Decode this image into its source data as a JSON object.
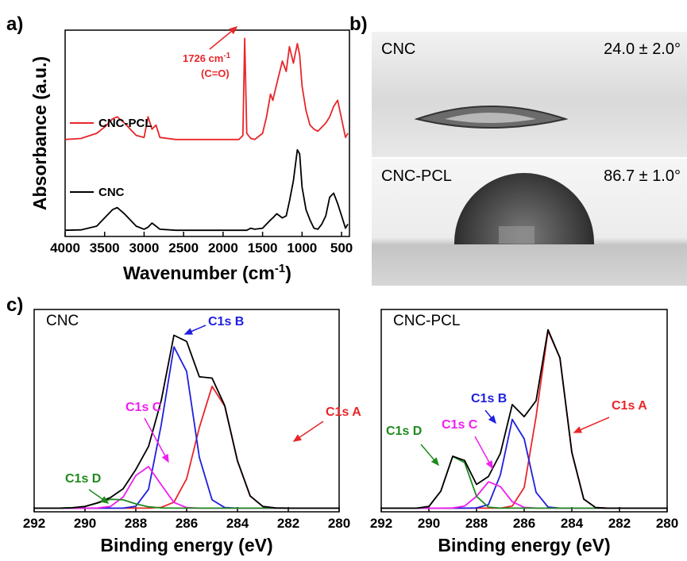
{
  "panels": [
    "a)",
    "b)",
    "c)"
  ],
  "images": [
    {
      "label": "CNC",
      "angle": "24.0 ± 2.0°"
    },
    {
      "label": "CNC-PCL",
      "angle": "86.7 ± 1.0°"
    }
  ],
  "chart_data": [
    {
      "type": "line",
      "xlabel": {
        "text": "Wavenumber (cm",
        "sup": "-1",
        "end": ")"
      },
      "ylabel": "Absorbance (a.u.)",
      "annotation": {
        "text": "1726 cm",
        "sup": "-1",
        "note": "(C=O)"
      },
      "xlim": [
        4000,
        400
      ],
      "xticks": [
        4000,
        3500,
        3000,
        2500,
        2000,
        1500,
        1000,
        500
      ],
      "ylim": [
        0,
        100
      ],
      "x": [
        4000,
        3800,
        3600,
        3500,
        3400,
        3340,
        3250,
        3100,
        3000,
        2950,
        2900,
        2850,
        2800,
        2600,
        2400,
        2200,
        2000,
        1800,
        1750,
        1726,
        1700,
        1650,
        1600,
        1500,
        1450,
        1400,
        1370,
        1320,
        1250,
        1200,
        1160,
        1110,
        1060,
        1030,
        1000,
        950,
        900,
        850,
        800,
        750,
        700,
        650,
        600,
        550,
        500,
        450,
        420
      ],
      "series": [
        {
          "name": "CNC-PCL",
          "color": "#e8262a",
          "values": [
            47,
            47.5,
            50,
            53,
            57,
            58,
            55,
            49,
            48,
            58,
            52,
            54,
            48,
            47,
            47,
            47,
            47,
            47,
            49,
            96,
            50,
            47.5,
            47,
            50,
            58,
            69,
            66,
            74,
            85,
            80,
            92,
            84,
            93.5,
            88,
            73,
            61,
            54,
            52,
            51,
            53,
            55,
            58,
            63,
            66,
            57,
            48,
            50
          ]
        },
        {
          "name": "CNC",
          "color": "#000000",
          "values": [
            3,
            3.2,
            5,
            9,
            13,
            14,
            11,
            5,
            3.5,
            4.5,
            6.5,
            5,
            3.5,
            3,
            3,
            3,
            3,
            3,
            3,
            3,
            3,
            4,
            3.5,
            4,
            6,
            8,
            9,
            11,
            9,
            10,
            17,
            27,
            42,
            40,
            24,
            13,
            8,
            4,
            3.5,
            6,
            10,
            19,
            21,
            16,
            10,
            4,
            6
          ]
        }
      ]
    },
    {
      "type": "line",
      "title": "CNC",
      "xlabel": "Binding energy (eV)",
      "xlim": [
        292,
        280
      ],
      "xticks": [
        292,
        290,
        288,
        286,
        284,
        282,
        280
      ],
      "ylim": [
        -2,
        108
      ],
      "x": [
        292,
        291.5,
        291,
        290.5,
        290,
        289.5,
        289,
        288.5,
        288,
        287.5,
        287,
        286.5,
        286,
        285.5,
        285,
        284.5,
        284,
        283.5,
        283,
        282.5,
        282,
        281.5,
        281,
        280.5,
        280
      ],
      "series": [
        {
          "name": "C1s A",
          "color": "#e8262a",
          "values": [
            0,
            0,
            0,
            0,
            0,
            0,
            0,
            0,
            0,
            0,
            0.4,
            3.2,
            16.0,
            43.8,
            66.2,
            55.4,
            25.7,
            6.6,
            0.9,
            0.1,
            0,
            0,
            0,
            0,
            0
          ]
        },
        {
          "name": "C1s B",
          "color": "#1f1fe0",
          "values": [
            0,
            0,
            0,
            0,
            0,
            0,
            0,
            0,
            1.0,
            10.2,
            45.3,
            87.7,
            74.3,
            27.6,
            4.5,
            0.3,
            0,
            0,
            0,
            0,
            0,
            0,
            0,
            0,
            0
          ]
        },
        {
          "name": "C1s C",
          "color": "#f01ef0",
          "values": [
            0,
            0,
            0,
            0,
            0,
            0.1,
            0.9,
            6.0,
            17.7,
            22.6,
            12.7,
            3.1,
            0.3,
            0,
            0,
            0,
            0,
            0,
            0,
            0,
            0,
            0,
            0,
            0,
            0
          ]
        },
        {
          "name": "C1s D",
          "color": "#1e8a1e",
          "values": [
            0,
            0,
            0,
            0.2,
            0.9,
            2.8,
            4.8,
            4.5,
            2.3,
            0.7,
            0.1,
            0,
            0,
            0,
            0,
            0,
            0,
            0,
            0,
            0,
            0,
            0,
            0,
            0,
            0
          ]
        },
        {
          "color": "#000000",
          "values": [
            0,
            0,
            0,
            0.2,
            0.9,
            2.9,
            5.7,
            10.5,
            21.0,
            33.5,
            58.5,
            94.0,
            90.6,
            71.4,
            70.7,
            55.7,
            25.7,
            6.6,
            0.9,
            0.1,
            0,
            0,
            0,
            0,
            0
          ]
        }
      ]
    },
    {
      "type": "line",
      "title": "CNC-PCL",
      "xlabel": "Binding energy (eV)",
      "xlim": [
        292,
        280
      ],
      "xticks": [
        292,
        290,
        288,
        286,
        284,
        282,
        280
      ],
      "ylim": [
        -2,
        108
      ],
      "x": [
        292,
        291.5,
        291,
        290.5,
        290,
        289.5,
        289,
        288.5,
        288,
        287.5,
        287,
        286.5,
        286,
        285.5,
        285,
        284.5,
        284,
        283.5,
        283,
        282.5,
        282,
        281.5,
        281,
        280.5,
        280
      ],
      "series": [
        {
          "name": "C1s A",
          "color": "#e8262a",
          "values": [
            0,
            0,
            0,
            0,
            0,
            0,
            0,
            0,
            0,
            0,
            0,
            1.1,
            11.2,
            49.8,
            96.4,
            81.7,
            30.3,
            4.9,
            0.3,
            0,
            0,
            0,
            0,
            0,
            0
          ]
        },
        {
          "name": "C1s B",
          "color": "#1f1fe0",
          "values": [
            0,
            0,
            0,
            0,
            0,
            0,
            0,
            0,
            0.1,
            1.9,
            18.0,
            48.2,
            37.7,
            8.6,
            0.6,
            0,
            0,
            0,
            0,
            0,
            0,
            0,
            0,
            0,
            0
          ]
        },
        {
          "name": "C1s C",
          "color": "#f01ef0",
          "values": [
            0,
            0,
            0,
            0,
            0,
            0,
            0.1,
            1.1,
            6.4,
            14.3,
            11.7,
            3.5,
            0.4,
            0,
            0,
            0,
            0,
            0,
            0,
            0,
            0,
            0,
            0,
            0,
            0
          ]
        },
        {
          "name": "C1s D",
          "color": "#1e8a1e",
          "values": [
            0,
            0,
            0,
            0,
            0.9,
            9.2,
            28.1,
            24.8,
            6.4,
            0.5,
            0,
            0,
            0,
            0,
            0,
            0,
            0,
            0,
            0,
            0,
            0,
            0,
            0,
            0,
            0
          ]
        },
        {
          "color": "#000000",
          "values": [
            0,
            0,
            0,
            0,
            0.9,
            9.2,
            28.2,
            25.9,
            12.9,
            17.2,
            29.7,
            56.3,
            49.7,
            58.4,
            97.0,
            81.7,
            30.3,
            4.9,
            0.3,
            0,
            0,
            0,
            0,
            0,
            0
          ]
        }
      ]
    }
  ]
}
